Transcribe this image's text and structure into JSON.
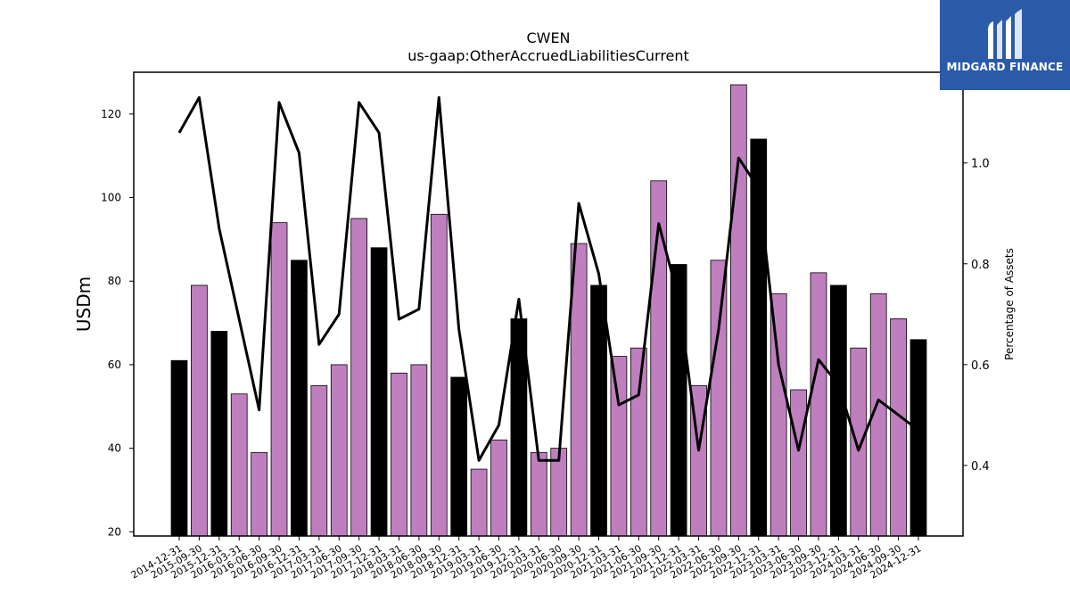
{
  "chart_data": {
    "type": "bar",
    "title": "CWEN",
    "subtitle": "us-gaap:OtherAccruedLiabilitiesCurrent",
    "ylabel": "USDm",
    "y2label": "Percentage of Assets",
    "ylim": [
      19,
      130
    ],
    "y2lim": [
      0.26,
      1.18
    ],
    "yticks": [
      20,
      40,
      60,
      80,
      100,
      120
    ],
    "y2ticks": [
      0.4,
      0.6,
      0.8,
      1.0
    ],
    "categories": [
      "2014-12-31",
      "2015-09-30",
      "2015-12-31",
      "2016-03-31",
      "2016-06-30",
      "2016-09-30",
      "2016-12-31",
      "2017-03-31",
      "2017-06-30",
      "2017-09-30",
      "2017-12-31",
      "2018-03-31",
      "2018-06-30",
      "2018-09-30",
      "2018-12-31",
      "2019-03-31",
      "2019-06-30",
      "2019-12-31",
      "2020-03-31",
      "2020-06-30",
      "2020-09-30",
      "2020-12-31",
      "2021-03-31",
      "2021-06-30",
      "2021-09-30",
      "2021-12-31",
      "2022-03-31",
      "2022-06-30",
      "2022-09-30",
      "2022-12-31",
      "2023-03-31",
      "2023-06-30",
      "2023-09-30",
      "2023-12-31",
      "2024-03-31",
      "2024-06-30",
      "2024-09-30",
      "2024-12-31"
    ],
    "series": [
      {
        "kind": "bar",
        "values": [
          61,
          79,
          68,
          53,
          39,
          94,
          85,
          55,
          60,
          95,
          88,
          58,
          60,
          96,
          57,
          35,
          42,
          71,
          39,
          40,
          89,
          79,
          62,
          64,
          104,
          84,
          55,
          85,
          127,
          114,
          77,
          54,
          82,
          79,
          64,
          77,
          71,
          66
        ],
        "year_end": [
          true,
          false,
          true,
          false,
          false,
          false,
          true,
          false,
          false,
          false,
          true,
          false,
          false,
          false,
          true,
          false,
          false,
          true,
          false,
          false,
          false,
          true,
          false,
          false,
          false,
          true,
          false,
          false,
          false,
          true,
          false,
          false,
          false,
          true,
          false,
          false,
          false,
          true
        ]
      },
      {
        "kind": "line",
        "axis": "right",
        "values": [
          1.06,
          1.13,
          0.87,
          0.69,
          0.51,
          1.12,
          1.02,
          0.64,
          0.7,
          1.12,
          1.06,
          0.69,
          0.71,
          1.13,
          0.67,
          0.41,
          0.48,
          0.73,
          0.41,
          0.41,
          0.92,
          0.78,
          0.52,
          0.54,
          0.88,
          0.73,
          0.43,
          0.67,
          1.01,
          0.95,
          0.6,
          0.43,
          0.61,
          0.56,
          0.43,
          0.53,
          0.5,
          0.47
        ]
      }
    ],
    "colors": {
      "year_end_bar": "#000000",
      "quarter_bar": "#bf7fbf",
      "line": "#000000",
      "bar_edge": "#000000"
    },
    "grid": false,
    "legend": "none"
  },
  "logo": {
    "brand": "MIDGARD FINANCE",
    "background": "#2b5ba8",
    "icon": "midgard-logo-icon"
  }
}
